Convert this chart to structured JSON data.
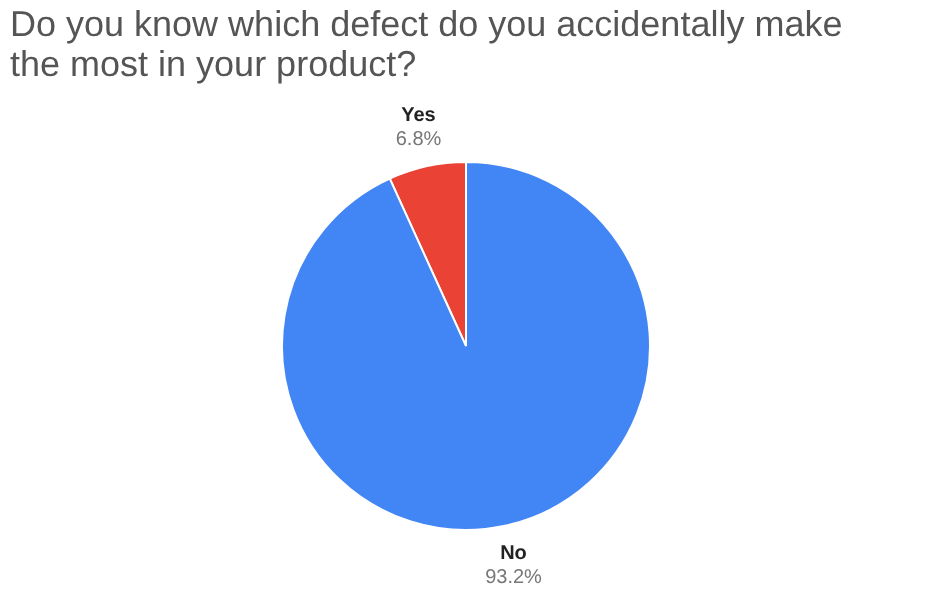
{
  "chart_data": {
    "type": "pie",
    "title": "Do you know which defect do you accidentally make the most in your product?",
    "categories": [
      "Yes",
      "No"
    ],
    "values": [
      6.8,
      93.2
    ],
    "colors": [
      "#ea4335",
      "#4285f4"
    ],
    "value_labels": [
      "6.8%",
      "93.2%"
    ],
    "legend": false
  }
}
